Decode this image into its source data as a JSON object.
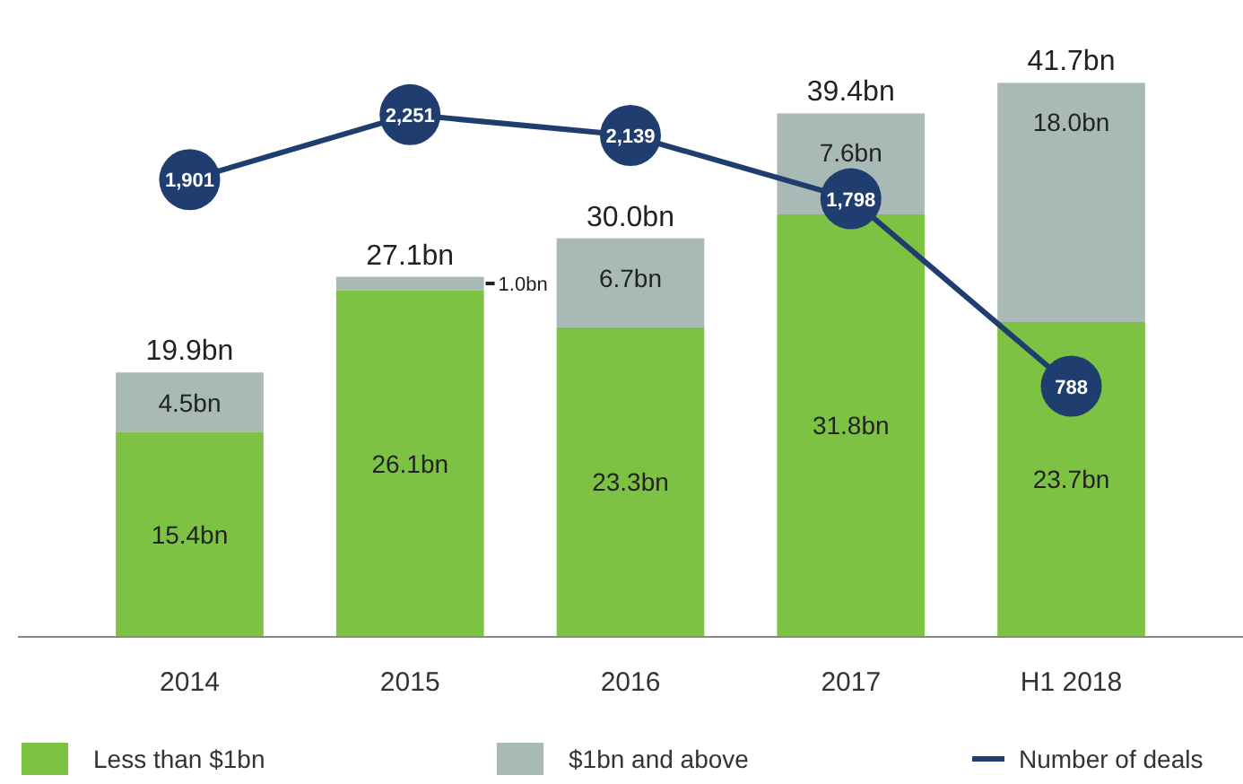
{
  "chart_data": {
    "type": "bar",
    "stacked": true,
    "categories": [
      "2014",
      "2015",
      "2016",
      "2017",
      "H1 2018"
    ],
    "series": [
      {
        "name": "Less than $1bn",
        "color": "#7dc242",
        "values": [
          15.4,
          26.1,
          23.3,
          31.8,
          23.7
        ],
        "value_labels": [
          "15.4bn",
          "26.1bn",
          "23.3bn",
          "31.8bn",
          "23.7bn"
        ]
      },
      {
        "name": "$1bn and above",
        "color": "#a9b9b5",
        "values": [
          4.5,
          1.0,
          6.7,
          7.6,
          18.0
        ],
        "value_labels": [
          "4.5bn",
          "1.0bn",
          "6.7bn",
          "7.6bn",
          "18.0bn"
        ]
      },
      {
        "name": "Number of deals",
        "type": "line",
        "axis": "y2",
        "color": "#1f3d6e",
        "marker": "circle",
        "values": [
          1901,
          2251,
          2139,
          1798,
          788
        ],
        "value_labels": [
          "1,901",
          "2,251",
          "2,139",
          "1,798",
          "788"
        ]
      }
    ],
    "totals": [
      "19.9bn",
      "27.1bn",
      "30.0bn",
      "39.4bn",
      "41.7bn"
    ],
    "legend": "bottom"
  }
}
